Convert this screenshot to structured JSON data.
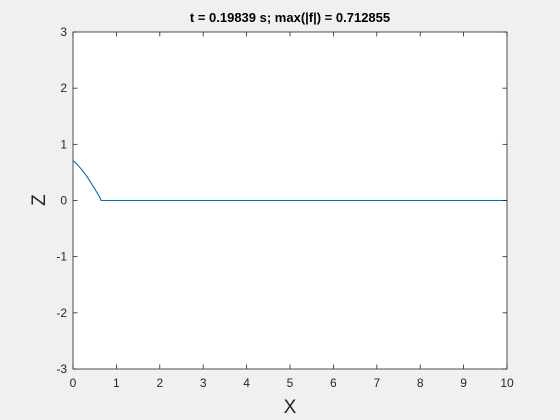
{
  "chart_data": {
    "type": "line",
    "title": "t = 0.19839 s;  max(|f|) = 0.712855",
    "xlabel": "X",
    "ylabel": "Z",
    "xlim": [
      0,
      10
    ],
    "ylim": [
      -3,
      3
    ],
    "x_ticks": [
      "0",
      "1",
      "2",
      "3",
      "4",
      "5",
      "6",
      "7",
      "8",
      "9",
      "10"
    ],
    "y_ticks": [
      "-3",
      "-2",
      "-1",
      "0",
      "1",
      "2",
      "3"
    ],
    "grid": false,
    "series": [
      {
        "color": "#0072bd",
        "x": [
          0,
          0.1,
          0.2,
          0.3,
          0.4,
          0.5,
          0.6,
          0.65,
          1,
          2,
          3,
          4,
          5,
          6,
          7,
          8,
          9,
          10
        ],
        "y": [
          0.71,
          0.64,
          0.55,
          0.45,
          0.33,
          0.21,
          0.08,
          0,
          0,
          0,
          0,
          0,
          0,
          0,
          0,
          0,
          0,
          0
        ]
      }
    ]
  }
}
